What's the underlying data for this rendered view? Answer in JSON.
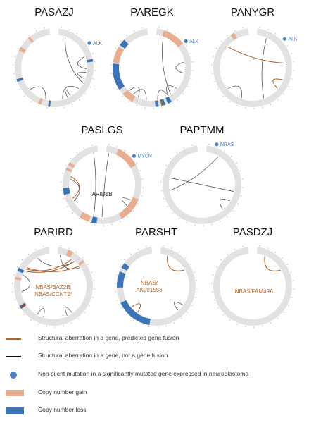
{
  "colors": {
    "ring": "#e2e2e2",
    "gain": "#e8ae90",
    "loss": "#3d74b8",
    "fusion": "#b7652d",
    "nonfusion": "#555555",
    "mutation": "#4a7fc1",
    "red": "#d9302b"
  },
  "samples": [
    {
      "name": "PASAZJ",
      "mutation_gene": "ALK",
      "mutation_angle": 55,
      "gain": [
        [
          296,
          302
        ],
        [
          318,
          322
        ],
        [
          200,
          204
        ]
      ],
      "loss": [
        [
          77,
          81
        ],
        [
          249,
          253
        ],
        [
          186,
          189
        ]
      ],
      "markers": [],
      "sv": [
        {
          "type": "nonfusion",
          "a": 20,
          "b": 118
        },
        {
          "type": "nonfusion",
          "a": 70,
          "b": 92
        },
        {
          "type": "nonfusion",
          "a": 98,
          "b": 110
        },
        {
          "type": "nonfusion",
          "a": 130,
          "b": 165
        },
        {
          "type": "nonfusion",
          "a": 150,
          "b": 156
        },
        {
          "type": "nonfusion",
          "a": 195,
          "b": 228
        }
      ],
      "labels": []
    },
    {
      "name": "PAREGK",
      "mutation_gene": "ALK",
      "mutation_angle": 52,
      "gain": [
        [
          18,
          52
        ],
        [
          278,
          302
        ],
        [
          210,
          228
        ]
      ],
      "loss": [
        [
          236,
          276
        ],
        [
          305,
          315
        ],
        [
          160,
          166
        ],
        [
          150,
          156
        ],
        [
          170,
          175
        ]
      ],
      "markers": [
        {
          "angle": 165,
          "color": "fusion"
        }
      ],
      "sv": [
        {
          "type": "nonfusion",
          "a": 20,
          "b": 145
        },
        {
          "type": "nonfusion",
          "a": 80,
          "b": 100
        },
        {
          "type": "nonfusion",
          "a": 130,
          "b": 150
        },
        {
          "type": "nonfusion",
          "a": 170,
          "b": 150
        },
        {
          "type": "nonfusion",
          "a": 205,
          "b": 225
        },
        {
          "type": "nonfusion",
          "a": 190,
          "b": 215
        }
      ],
      "labels": []
    },
    {
      "name": "PANYGR",
      "mutation_gene": "ALK",
      "mutation_angle": 48,
      "gain": [
        [
          326,
          332
        ]
      ],
      "loss": [],
      "markers": [],
      "sv": [
        {
          "type": "fusion",
          "a": 310,
          "b": 82
        },
        {
          "type": "fusion",
          "a": 112,
          "b": 130
        },
        {
          "type": "nonfusion",
          "a": 25,
          "b": 160
        },
        {
          "type": "nonfusion",
          "a": 200,
          "b": 230
        }
      ],
      "labels": []
    },
    {
      "name": "PASLGS",
      "mutation_gene": "MYCN",
      "mutation_angle": 48,
      "gain": [
        [
          292,
          296
        ],
        [
          300,
          305
        ],
        [
          25,
          60
        ],
        [
          112,
          150
        ],
        [
          200,
          215
        ]
      ],
      "loss": [
        [
          255,
          265
        ],
        [
          188,
          196
        ]
      ],
      "markers": [],
      "sv": [
        {
          "type": "nonfusion",
          "a": 345,
          "b": 195
        },
        {
          "type": "nonfusion",
          "a": 12,
          "b": 180
        },
        {
          "type": "fusion",
          "a": 245,
          "b": 285
        },
        {
          "type": "nonfusion",
          "a": 240,
          "b": 280
        },
        {
          "type": "nonfusion",
          "a": 130,
          "b": 118
        }
      ],
      "labels": [
        {
          "text": "ARID1B",
          "kind": "plain",
          "dx": 0,
          "dy": 16
        }
      ]
    },
    {
      "name": "PAPTMM",
      "mutation_gene": "NRAS",
      "mutation_angle": 20,
      "gain": [],
      "loss": [],
      "markers": [],
      "sv": [
        {
          "type": "nonfusion",
          "a": 282,
          "b": 102
        },
        {
          "type": "nonfusion",
          "a": 30,
          "b": 260
        },
        {
          "type": "nonfusion",
          "a": 140,
          "b": 120
        }
      ],
      "labels": []
    },
    {
      "name": "PARIRD",
      "mutation_gene": "",
      "mutation_angle": 0,
      "gain": [
        [
          22,
          30
        ],
        [
          48,
          52
        ],
        [
          280,
          284
        ]
      ],
      "loss": [
        [
          293,
          298
        ],
        [
          235,
          240
        ]
      ],
      "markers": [
        {
          "angle": 237,
          "color": "red"
        }
      ],
      "sv": [
        {
          "type": "fusion",
          "a": 298,
          "b": 40
        },
        {
          "type": "fusion",
          "a": 302,
          "b": 34
        },
        {
          "type": "fusion",
          "a": 305,
          "b": 52
        },
        {
          "type": "nonfusion",
          "a": 330,
          "b": 40
        },
        {
          "type": "nonfusion",
          "a": 12,
          "b": 55
        },
        {
          "type": "nonfusion",
          "a": 145,
          "b": 155
        },
        {
          "type": "nonfusion",
          "a": 198,
          "b": 210
        },
        {
          "type": "nonfusion",
          "a": 290,
          "b": 260
        }
      ],
      "labels": [
        {
          "text": "NBAS/BAZ2B;",
          "kind": "fusion",
          "dx": 0,
          "dy": 4
        },
        {
          "text": "NBAS/CCNT2*",
          "kind": "fusion",
          "dx": 0,
          "dy": 14
        }
      ]
    },
    {
      "name": "PARSHT",
      "mutation_gene": "",
      "mutation_angle": 0,
      "gain": [],
      "loss": [
        [
          268,
          292
        ],
        [
          190,
          245
        ],
        [
          298,
          306
        ]
      ],
      "markers": [],
      "sv": [
        {
          "type": "fusion",
          "a": 20,
          "b": 60
        },
        {
          "type": "fusion",
          "a": 230,
          "b": 215
        },
        {
          "type": "nonfusion",
          "a": 138,
          "b": 125
        }
      ],
      "labels": [
        {
          "text": "NBAS/",
          "kind": "fusion",
          "dx": -10,
          "dy": -2
        },
        {
          "text": "AK001558",
          "kind": "fusion",
          "dx": -10,
          "dy": 8
        }
      ]
    },
    {
      "name": "PASDZJ",
      "mutation_gene": "",
      "mutation_angle": 0,
      "gain": [],
      "loss": [],
      "markers": [],
      "sv": [
        {
          "type": "fusion",
          "a": 22,
          "b": 60
        }
      ],
      "labels": [
        {
          "text": "NBAS/FAM49A",
          "kind": "fusion",
          "dx": 2,
          "dy": 10
        }
      ]
    }
  ],
  "legend": [
    {
      "kind": "fusion-line",
      "text": "Structural aberration in a gene, predicted gene fusion"
    },
    {
      "kind": "nonfusion-line",
      "text": "Structural aberration in a gene, not a gene fusion"
    },
    {
      "kind": "mutation-dot",
      "text": "Non-silent mutation in a significantly mutated gene expressed in neuroblastoma"
    },
    {
      "kind": "gain-box",
      "text": "Copy number gain"
    },
    {
      "kind": "loss-box",
      "text": "Copy number loss"
    }
  ]
}
